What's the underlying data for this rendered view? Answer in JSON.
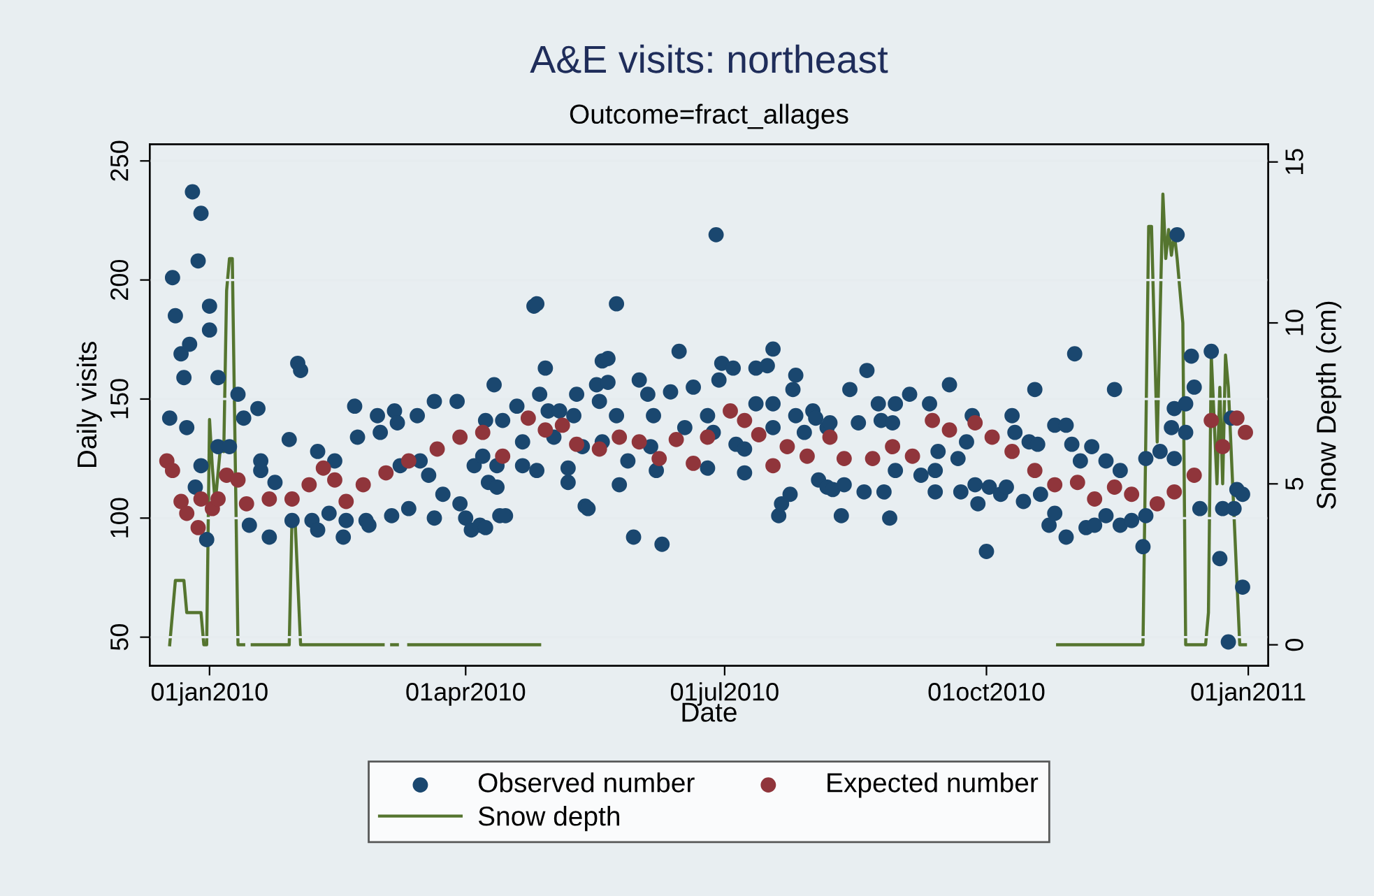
{
  "chart_data": {
    "type": "scatter",
    "title": "A&E visits: northeast",
    "subtitle": "Outcome=fract_allages",
    "xlabel": "Date",
    "ylabel": "Daily visits",
    "y2label": "Snow Depth (cm)",
    "xlim": [
      "2009-12-11",
      "2011-01-08"
    ],
    "xticks": [
      {
        "value": "2010-01-01",
        "label": "01jan2010"
      },
      {
        "value": "2010-04-01",
        "label": "01apr2010"
      },
      {
        "value": "2010-07-01",
        "label": "01jul2010"
      },
      {
        "value": "2010-10-01",
        "label": "01oct2010"
      },
      {
        "value": "2011-01-01",
        "label": "01jan2011"
      }
    ],
    "ylim": [
      38,
      257
    ],
    "yticks": [
      50,
      100,
      150,
      200,
      250
    ],
    "y2lim": [
      -0.65,
      15.55
    ],
    "y2ticks": [
      0,
      5,
      10,
      15
    ],
    "grid": "y",
    "legend": "bottom",
    "series": [
      {
        "name": "Observed number",
        "marker": "circle",
        "color": "#1a476f",
        "x": [
          "2009-12-18",
          "2009-12-19",
          "2009-12-20",
          "2009-12-22",
          "2009-12-23",
          "2009-12-24",
          "2009-12-26",
          "2009-12-25",
          "2009-12-27",
          "2009-12-28",
          "2009-12-29",
          "2009-12-29",
          "2009-12-31",
          "2010-01-01",
          "2010-01-01",
          "2010-01-04",
          "2010-01-04",
          "2010-01-08",
          "2010-01-11",
          "2010-01-13",
          "2010-01-15",
          "2010-01-18",
          "2010-01-19",
          "2010-01-19",
          "2010-01-22",
          "2010-01-24",
          "2010-01-29",
          "2010-01-30",
          "2010-02-01",
          "2010-02-02",
          "2010-02-06",
          "2010-02-08",
          "2010-02-08",
          "2010-02-12",
          "2010-02-14",
          "2010-02-17",
          "2010-02-18",
          "2010-02-21",
          "2010-02-22",
          "2010-02-25",
          "2010-02-26",
          "2010-03-01",
          "2010-03-02",
          "2010-03-06",
          "2010-03-07",
          "2010-03-08",
          "2010-03-09",
          "2010-03-12",
          "2010-03-15",
          "2010-03-16",
          "2010-03-19",
          "2010-03-21",
          "2010-03-21",
          "2010-03-24",
          "2010-03-29",
          "2010-03-30",
          "2010-04-01",
          "2010-04-03",
          "2010-04-04",
          "2010-04-06",
          "2010-04-07",
          "2010-04-08",
          "2010-04-08",
          "2010-04-14",
          "2010-04-09",
          "2010-04-11",
          "2010-04-12",
          "2010-04-12",
          "2010-04-13",
          "2010-04-15",
          "2010-04-19",
          "2010-04-21",
          "2010-04-21",
          "2010-04-25",
          "2010-04-26",
          "2010-04-26",
          "2010-04-27",
          "2010-04-29",
          "2010-04-30",
          "2010-05-02",
          "2010-05-04",
          "2010-05-07",
          "2010-05-07",
          "2010-05-09",
          "2010-05-10",
          "2010-05-12",
          "2010-05-13",
          "2010-05-14",
          "2010-05-17",
          "2010-05-18",
          "2010-05-19",
          "2010-05-19",
          "2010-05-21",
          "2010-05-21",
          "2010-05-24",
          "2010-05-24",
          "2010-05-25",
          "2010-05-28",
          "2010-05-30",
          "2010-06-01",
          "2010-06-04",
          "2010-06-05",
          "2010-06-06",
          "2010-06-07",
          "2010-06-09",
          "2010-06-12",
          "2010-06-15",
          "2010-06-17",
          "2010-06-20",
          "2010-06-25",
          "2010-06-25",
          "2010-06-27",
          "2010-06-29",
          "2010-06-28",
          "2010-06-30",
          "2010-07-04",
          "2010-07-05",
          "2010-07-08",
          "2010-07-08",
          "2010-07-12",
          "2010-07-12",
          "2010-07-16",
          "2010-07-18",
          "2010-07-18",
          "2010-07-18",
          "2010-07-20",
          "2010-07-21",
          "2010-07-24",
          "2010-07-25",
          "2010-07-26",
          "2010-07-26",
          "2010-07-29",
          "2010-08-01",
          "2010-08-02",
          "2010-08-03",
          "2010-08-06",
          "2010-08-06",
          "2010-08-07",
          "2010-08-08",
          "2010-08-11",
          "2010-08-12",
          "2010-08-14",
          "2010-08-17",
          "2010-08-19",
          "2010-08-20",
          "2010-08-24",
          "2010-08-25",
          "2010-08-26",
          "2010-08-28",
          "2010-08-29",
          "2010-08-30",
          "2010-08-30",
          "2010-09-04",
          "2010-09-08",
          "2010-09-11",
          "2010-09-13",
          "2010-09-13",
          "2010-09-14",
          "2010-09-18",
          "2010-09-21",
          "2010-09-22",
          "2010-09-24",
          "2010-09-26",
          "2010-09-27",
          "2010-09-28",
          "2010-10-01",
          "2010-10-02",
          "2010-10-06",
          "2010-10-08",
          "2010-10-10",
          "2010-10-11",
          "2010-10-14",
          "2010-10-16",
          "2010-10-18",
          "2010-10-19",
          "2010-10-20",
          "2010-10-23",
          "2010-10-25",
          "2010-10-25",
          "2010-10-29",
          "2010-10-29",
          "2010-10-31",
          "2010-11-01",
          "2010-11-03",
          "2010-11-05",
          "2010-11-07",
          "2010-11-08",
          "2010-11-12",
          "2010-11-12",
          "2010-11-15",
          "2010-11-17",
          "2010-11-17",
          "2010-11-21",
          "2010-11-25",
          "2010-11-26",
          "2010-11-26",
          "2010-12-01",
          "2010-12-05",
          "2010-12-06",
          "2010-12-06",
          "2010-12-07",
          "2010-12-10",
          "2010-12-10",
          "2010-12-12",
          "2010-12-13",
          "2010-12-15",
          "2010-12-19",
          "2010-12-22",
          "2010-12-23",
          "2010-12-25",
          "2010-12-26",
          "2010-12-27",
          "2010-12-28",
          "2010-12-30",
          "2010-12-30"
        ],
        "values": [
          142,
          201,
          185,
          169,
          159,
          138,
          237,
          173,
          113,
          208,
          228,
          122,
          91,
          179,
          189,
          159,
          130,
          130,
          152,
          142,
          97,
          146,
          124,
          120,
          92,
          115,
          133,
          99,
          165,
          162,
          99,
          128,
          95,
          102,
          124,
          92,
          99,
          147,
          134,
          99,
          97,
          143,
          136,
          101,
          145,
          140,
          122,
          104,
          143,
          124,
          118,
          149,
          100,
          110,
          149,
          106,
          100,
          95,
          122,
          97,
          126,
          96,
          141,
          141,
          115,
          156,
          122,
          113,
          101,
          101,
          147,
          132,
          122,
          189,
          190,
          120,
          152,
          163,
          145,
          134,
          145,
          121,
          115,
          143,
          152,
          130,
          105,
          104,
          156,
          149,
          132,
          166,
          167,
          157,
          190,
          143,
          114,
          124,
          92,
          158,
          152,
          130,
          143,
          120,
          89,
          153,
          170,
          138,
          155,
          143,
          121,
          136,
          158,
          219,
          165,
          163,
          131,
          129,
          119,
          163,
          148,
          164,
          171,
          148,
          138,
          101,
          106,
          110,
          154,
          160,
          143,
          136,
          145,
          142,
          116,
          138,
          113,
          140,
          112,
          101,
          114,
          154,
          140,
          111,
          162,
          148,
          141,
          111,
          100,
          140,
          148,
          120,
          152,
          118,
          148,
          111,
          120,
          128,
          156,
          125,
          111,
          132,
          143,
          114,
          106,
          86,
          113,
          110,
          113,
          143,
          136,
          107,
          132,
          154,
          131,
          110,
          97,
          102,
          139,
          92,
          139,
          131,
          169,
          124,
          96,
          130,
          97,
          101,
          124,
          154,
          120,
          97,
          99,
          88,
          101,
          125,
          128,
          138,
          146,
          125,
          219,
          148,
          136,
          168,
          155,
          104,
          170,
          83,
          104,
          48,
          142,
          104,
          112,
          110,
          71
        ]
      },
      {
        "name": "Expected number",
        "marker": "circle",
        "color": "#90353b",
        "x": [
          "2009-12-17",
          "2009-12-19",
          "2009-12-22",
          "2009-12-24",
          "2009-12-28",
          "2009-12-29",
          "2010-01-02",
          "2010-01-04",
          "2010-01-07",
          "2010-01-11",
          "2010-01-14",
          "2010-01-22",
          "2010-01-30",
          "2010-02-05",
          "2010-02-10",
          "2010-02-14",
          "2010-02-18",
          "2010-02-24",
          "2010-03-04",
          "2010-03-12",
          "2010-03-22",
          "2010-03-30",
          "2010-04-07",
          "2010-04-14",
          "2010-04-23",
          "2010-04-29",
          "2010-05-05",
          "2010-05-10",
          "2010-05-18",
          "2010-05-25",
          "2010-06-01",
          "2010-06-08",
          "2010-06-14",
          "2010-06-20",
          "2010-06-25",
          "2010-07-03",
          "2010-07-08",
          "2010-07-13",
          "2010-07-18",
          "2010-07-23",
          "2010-07-30",
          "2010-08-07",
          "2010-08-12",
          "2010-08-22",
          "2010-08-29",
          "2010-09-05",
          "2010-09-12",
          "2010-09-18",
          "2010-09-27",
          "2010-10-03",
          "2010-10-10",
          "2010-10-18",
          "2010-10-25",
          "2010-11-02",
          "2010-11-08",
          "2010-11-15",
          "2010-11-21",
          "2010-11-30",
          "2010-12-06",
          "2010-12-13",
          "2010-12-19",
          "2010-12-23",
          "2010-12-28",
          "2010-12-31"
        ],
        "values": [
          124,
          120,
          107,
          102,
          96,
          108,
          104,
          108,
          118,
          116,
          106,
          108,
          108,
          114,
          121,
          116,
          107,
          114,
          119,
          124,
          129,
          134,
          136,
          126,
          142,
          137,
          139,
          131,
          129,
          134,
          132,
          125,
          133,
          123,
          134,
          145,
          141,
          135,
          122,
          130,
          126,
          134,
          125,
          125,
          130,
          126,
          141,
          137,
          140,
          134,
          128,
          120,
          114,
          115,
          108,
          113,
          110,
          106,
          111,
          118,
          141,
          130,
          142,
          136
        ]
      },
      {
        "name": "Snow depth",
        "type": "line",
        "marker": "none",
        "line_style": "solid",
        "axis": "y2",
        "color": "#55752f",
        "x": [
          "2009-12-18",
          "2009-12-20",
          "2009-12-23",
          "2009-12-24",
          "2009-12-29",
          "2009-12-30",
          "2009-12-31",
          "2010-01-01",
          "2010-01-02",
          "2010-01-03",
          "2010-01-05",
          "2010-01-06",
          "2010-01-07",
          "2010-01-08",
          "2010-01-09",
          "2010-01-11",
          "2010-01-13",
          "2010-01-14",
          "2010-01-16",
          "2010-01-29",
          "2010-01-30",
          "2010-01-31",
          "2010-02-02",
          "2010-03-03",
          "2010-03-04",
          "2010-03-06",
          "2010-03-08",
          "2010-03-10",
          "2010-03-12",
          "2010-04-27",
          "2010-06-01",
          "2010-10-26",
          "2010-11-25",
          "2010-11-27",
          "2010-11-28",
          "2010-11-30",
          "2010-12-02",
          "2010-12-03",
          "2010-12-04",
          "2010-12-05",
          "2010-12-06",
          "2010-12-07",
          "2010-12-08",
          "2010-12-09",
          "2010-12-10",
          "2010-12-17",
          "2010-12-18",
          "2010-12-19",
          "2010-12-21",
          "2010-12-22",
          "2010-12-23",
          "2010-12-24",
          "2010-12-25",
          "2010-12-29",
          "2010-12-31"
        ],
        "values": [
          0,
          2,
          2,
          1,
          1,
          0,
          0,
          7,
          5.5,
          4.4,
          6.3,
          6,
          11,
          12,
          12,
          0,
          0,
          null,
          0,
          0,
          4,
          4,
          0,
          0,
          null,
          0,
          0,
          null,
          0,
          0,
          null,
          0,
          0,
          13,
          13,
          6.3,
          14,
          12,
          12.9,
          12.1,
          12.8,
          12,
          11,
          10,
          0,
          0,
          1,
          9,
          5,
          8,
          5,
          9,
          8,
          0,
          0
        ]
      }
    ]
  }
}
